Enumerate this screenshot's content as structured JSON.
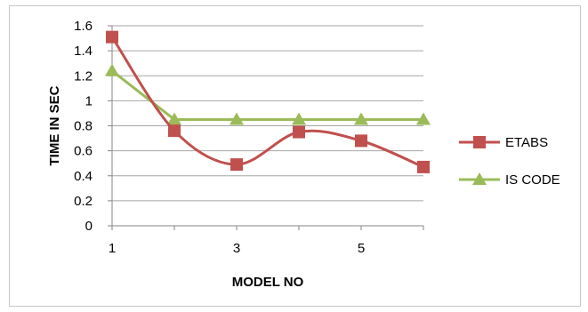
{
  "chart_data": {
    "type": "line",
    "x": [
      1,
      2,
      3,
      4,
      5,
      6
    ],
    "x_tick_labels": [
      "1",
      "3",
      "5"
    ],
    "x_tick_values": [
      1,
      3,
      5
    ],
    "xlabel": "MODEL NO",
    "ylabel": "TIME IN SEC",
    "ylim": [
      0,
      1.6
    ],
    "y_ticks": [
      "0",
      "0.2",
      "0.4",
      "0.6",
      "0.8",
      "1",
      "1.2",
      "1.4",
      "1.6"
    ],
    "grid": true,
    "legend_position": "right",
    "series": [
      {
        "name": "ETABS",
        "color": "#c0504d",
        "marker": "square",
        "smooth": true,
        "values": [
          1.51,
          0.76,
          0.49,
          0.75,
          0.68,
          0.47
        ]
      },
      {
        "name": "IS CODE",
        "color": "#9bbb59",
        "marker": "triangle",
        "smooth": false,
        "values": [
          1.24,
          0.85,
          0.85,
          0.85,
          0.85,
          0.85
        ]
      }
    ]
  }
}
